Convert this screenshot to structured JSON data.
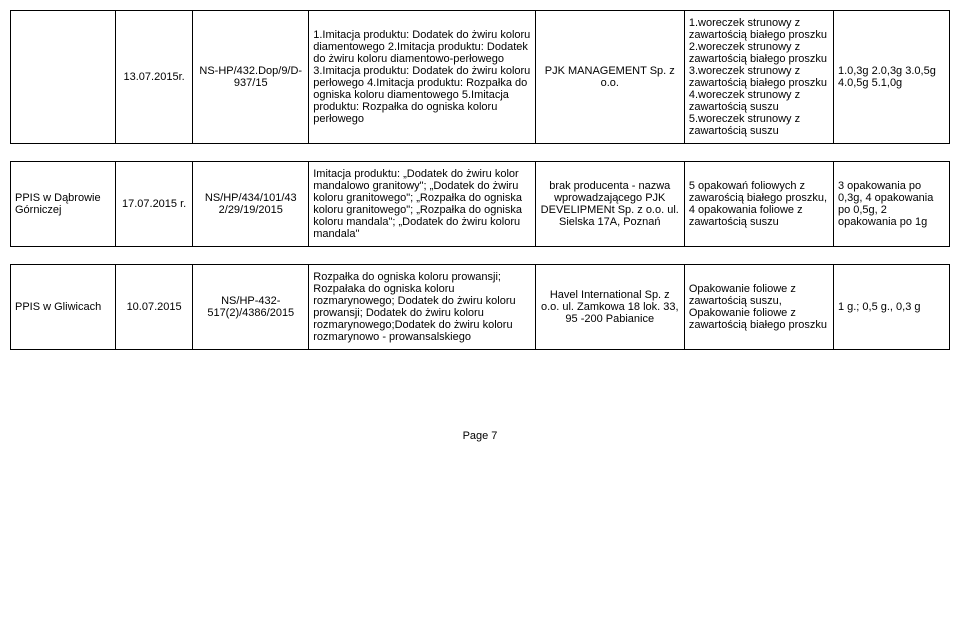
{
  "rows": [
    {
      "org": "",
      "date": "13.07.2015r.",
      "ref": "NS-HP/432.Dop/9/D-937/15",
      "desc": "1.Imitacja produktu: Dodatek do żwiru koloru diamentowego 2.Imitacja produktu: Dodatek do żwiru koloru diamentowo-perłowego 3.Imitacja produktu: Dodatek do żwiru koloru perłowego 4.Imitacja produktu: Rozpałka do ogniska koloru diamentowego 5.Imitacja produktu: Rozpałka do ogniska koloru perłowego",
      "mfr": "PJK MANAGEMENT Sp. z o.o.",
      "pkg": "1.woreczek strunowy z zawartością białego proszku    2.woreczek strunowy z zawartością białego proszku 3.woreczek strunowy z zawartością białego proszku    4.woreczek strunowy z zawartością suszu 5.woreczek strunowy z zawartością suszu",
      "qty": "1.0,3g    2.0,3g 3.0,5g    4.0,5g 5.1,0g"
    },
    {
      "org": "PPIS w Dąbrowie Górniczej",
      "date": "17.07.2015 r.",
      "ref": "NS/HP/434/101/43 2/29/19/2015",
      "desc": "Imitacja produktu: „Dodatek do żwiru kolor mandalowo granitowy\"; „Dodatek do żwiru koloru granitowego\"; „Rozpałka do ogniska koloru granitowego\"; „Rozpałka do ogniska koloru mandala\"; „Dodatek do żwiru koloru mandala\"",
      "mfr": "brak producenta - nazwa wprowadzającego PJK DEVELIPMENt Sp. z o.o. ul. Sielska 17A, Poznań",
      "pkg": "5 opakowań foliowych z zawarością białego proszku, 4 opakowania foliowe z zawartością suszu",
      "qty": "3 opakowania po 0,3g, 4 opakowania po 0,5g, 2 opakowania po 1g"
    },
    {
      "org": "PPIS w Gliwicach",
      "date": "10.07.2015",
      "ref": "NS/HP-432-517(2)/4386/2015",
      "desc": "Rozpałka do ogniska koloru prowansji; Rozpałaka do ogniska koloru rozmarynowego; Dodatek do żwiru koloru prowansji; Dodatek do żwiru koloru rozmarynowego;Dodatek do żwiru koloru rozmarynowo - prowansalskiego",
      "mfr": "Havel International Sp. z o.o. ul. Zamkowa 18 lok. 33, 95 -200 Pabianice",
      "pkg": "Opakowanie foliowe z zawartością suszu, Opakowanie foliowe z zawartością białego proszku",
      "qty": "1 g.; 0,5 g., 0,3 g"
    }
  ],
  "footer": "Page 7"
}
